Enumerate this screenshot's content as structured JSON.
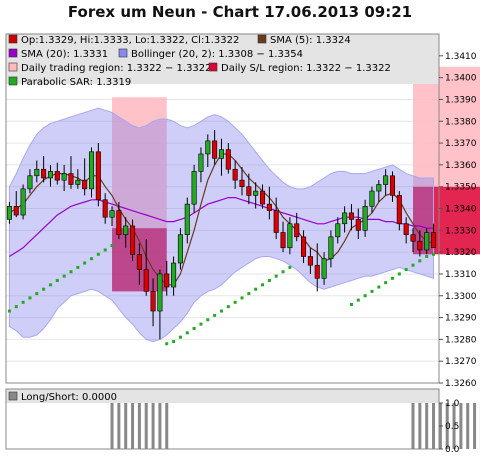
{
  "chart_data": [
    {
      "type": "candlestick",
      "title": "Forex um Neun - Chart 17.06.2013 09:21",
      "ylim": [
        1.326,
        1.342
      ],
      "y_ticks": [
        "1.3260",
        "1.3270",
        "1.3280",
        "1.3290",
        "1.3300",
        "1.3310",
        "1.3320",
        "1.3330",
        "1.3340",
        "1.3350",
        "1.3360",
        "1.3370",
        "1.3380",
        "1.3390",
        "1.3400",
        "1.3410"
      ],
      "legend": [
        {
          "label": "Op:1.3329, Hi:1.3333, Lo:1.3322, Cl:1.3322",
          "color": "#cc0000"
        },
        {
          "label": "SMA (5): 1.3324",
          "color": "#6b3a1e"
        },
        {
          "label": "SMA (20): 1.3331",
          "color": "#9900cc"
        },
        {
          "label": "Bollinger (20, 2): 1.3308 − 1.3354",
          "color": "#8888ee"
        },
        {
          "label": "Daily trading region: 1.3322 − 1.3322",
          "color": "#ffbbbb"
        },
        {
          "label": "Daily S/L region: 1.3322 − 1.3322",
          "color": "#dd0033"
        },
        {
          "label": "Parabolic SAR: 1.3319",
          "color": "#22aa22"
        }
      ],
      "candles": [
        [
          1.3335,
          1.3343,
          1.3333,
          1.3341
        ],
        [
          1.3341,
          1.3348,
          1.3336,
          1.3337
        ],
        [
          1.3337,
          1.3351,
          1.3335,
          1.3349
        ],
        [
          1.3349,
          1.3358,
          1.3347,
          1.3355
        ],
        [
          1.3355,
          1.3362,
          1.3352,
          1.3358
        ],
        [
          1.3358,
          1.3364,
          1.3352,
          1.3354
        ],
        [
          1.3354,
          1.336,
          1.335,
          1.3357
        ],
        [
          1.3357,
          1.3361,
          1.3351,
          1.3353
        ],
        [
          1.3353,
          1.336,
          1.3348,
          1.3356
        ],
        [
          1.3356,
          1.3364,
          1.3349,
          1.3351
        ],
        [
          1.3351,
          1.3358,
          1.3349,
          1.3353
        ],
        [
          1.3353,
          1.3363,
          1.3346,
          1.3349
        ],
        [
          1.3349,
          1.3368,
          1.3345,
          1.3366
        ],
        [
          1.3366,
          1.337,
          1.3341,
          1.3344
        ],
        [
          1.3344,
          1.3347,
          1.3333,
          1.3336
        ],
        [
          1.3336,
          1.3341,
          1.3332,
          1.3339
        ],
        [
          1.3339,
          1.3343,
          1.3326,
          1.3328
        ],
        [
          1.3328,
          1.3336,
          1.3322,
          1.3332
        ],
        [
          1.3332,
          1.3335,
          1.3316,
          1.3319
        ],
        [
          1.3319,
          1.3324,
          1.3305,
          1.3312
        ],
        [
          1.3312,
          1.3326,
          1.33,
          1.3302
        ],
        [
          1.3302,
          1.3308,
          1.3286,
          1.3293
        ],
        [
          1.3293,
          1.3312,
          1.328,
          1.331
        ],
        [
          1.331,
          1.3316,
          1.33,
          1.3304
        ],
        [
          1.3304,
          1.3318,
          1.33,
          1.3315
        ],
        [
          1.3315,
          1.3331,
          1.3312,
          1.3328
        ],
        [
          1.3328,
          1.3345,
          1.3324,
          1.3342
        ],
        [
          1.3342,
          1.336,
          1.3338,
          1.3357
        ],
        [
          1.3357,
          1.3368,
          1.3352,
          1.3365
        ],
        [
          1.3365,
          1.3374,
          1.3359,
          1.3371
        ],
        [
          1.3371,
          1.3376,
          1.336,
          1.3363
        ],
        [
          1.3363,
          1.3372,
          1.3355,
          1.3367
        ],
        [
          1.3367,
          1.337,
          1.3356,
          1.3358
        ],
        [
          1.3358,
          1.3362,
          1.3349,
          1.3353
        ],
        [
          1.3353,
          1.3359,
          1.3346,
          1.335
        ],
        [
          1.335,
          1.3356,
          1.3342,
          1.3346
        ],
        [
          1.3346,
          1.3352,
          1.334,
          1.3348
        ],
        [
          1.3348,
          1.3351,
          1.334,
          1.3342
        ],
        [
          1.3342,
          1.335,
          1.3335,
          1.3339
        ],
        [
          1.3339,
          1.3345,
          1.3326,
          1.3329
        ],
        [
          1.3329,
          1.3334,
          1.332,
          1.3322
        ],
        [
          1.3322,
          1.3336,
          1.3319,
          1.3333
        ],
        [
          1.3333,
          1.3338,
          1.3325,
          1.3327
        ],
        [
          1.3327,
          1.333,
          1.3315,
          1.3318
        ],
        [
          1.3318,
          1.3322,
          1.331,
          1.3314
        ],
        [
          1.3314,
          1.3324,
          1.3302,
          1.3308
        ],
        [
          1.3308,
          1.332,
          1.3305,
          1.3317
        ],
        [
          1.3317,
          1.333,
          1.3313,
          1.3327
        ],
        [
          1.3327,
          1.3336,
          1.3324,
          1.3333
        ],
        [
          1.3333,
          1.3341,
          1.3329,
          1.3338
        ],
        [
          1.3338,
          1.3342,
          1.333,
          1.3335
        ],
        [
          1.3335,
          1.334,
          1.3326,
          1.333
        ],
        [
          1.333,
          1.3344,
          1.3327,
          1.3341
        ],
        [
          1.3341,
          1.335,
          1.3338,
          1.3348
        ],
        [
          1.3348,
          1.3353,
          1.3343,
          1.3351
        ],
        [
          1.3351,
          1.3358,
          1.3346,
          1.3355
        ],
        [
          1.3355,
          1.3357,
          1.3343,
          1.3346
        ],
        [
          1.3346,
          1.3348,
          1.333,
          1.3333
        ],
        [
          1.3333,
          1.3336,
          1.3324,
          1.3328
        ],
        [
          1.3328,
          1.3331,
          1.332,
          1.3325
        ],
        [
          1.3325,
          1.333,
          1.3318,
          1.3321
        ],
        [
          1.3321,
          1.3331,
          1.3319,
          1.3329
        ],
        [
          1.3329,
          1.3333,
          1.3322,
          1.3322
        ]
      ],
      "sma5": [
        1.3338,
        1.334,
        1.3342,
        1.3346,
        1.335,
        1.3353,
        1.3355,
        1.3356,
        1.3356,
        1.3355,
        1.3354,
        1.3352,
        1.3355,
        1.3355,
        1.335,
        1.3346,
        1.334,
        1.3335,
        1.3331,
        1.3325,
        1.3318,
        1.3312,
        1.3308,
        1.3305,
        1.3305,
        1.331,
        1.332,
        1.333,
        1.3342,
        1.3353,
        1.336,
        1.3365,
        1.3365,
        1.3362,
        1.3358,
        1.3354,
        1.3351,
        1.3348,
        1.3345,
        1.3341,
        1.3336,
        1.3333,
        1.333,
        1.3326,
        1.3322,
        1.332,
        1.3316,
        1.3317,
        1.332,
        1.3325,
        1.3331,
        1.3333,
        1.3335,
        1.3338,
        1.3343,
        1.3346,
        1.3347,
        1.3344,
        1.3338,
        1.3333,
        1.3328,
        1.3325,
        1.3324
      ],
      "sma20": [
        1.3318,
        1.332,
        1.3322,
        1.3325,
        1.3328,
        1.3331,
        1.3334,
        1.3337,
        1.3339,
        1.3341,
        1.3342,
        1.3343,
        1.3344,
        1.3344,
        1.3343,
        1.3342,
        1.3341,
        1.334,
        1.3339,
        1.3338,
        1.3337,
        1.3336,
        1.3335,
        1.3334,
        1.3334,
        1.3335,
        1.3336,
        1.3338,
        1.334,
        1.3342,
        1.3343,
        1.3344,
        1.3345,
        1.3345,
        1.3344,
        1.3343,
        1.3342,
        1.3341,
        1.334,
        1.3339,
        1.3338,
        1.3337,
        1.3336,
        1.3335,
        1.3334,
        1.3333,
        1.3333,
        1.3334,
        1.3335,
        1.3336,
        1.3336,
        1.3336,
        1.3335,
        1.3335,
        1.3335,
        1.3334,
        1.3334,
        1.3333,
        1.3333,
        1.3332,
        1.3332,
        1.3331,
        1.3331
      ],
      "boll_upper": [
        1.335,
        1.3356,
        1.3363,
        1.3369,
        1.3374,
        1.3377,
        1.3379,
        1.338,
        1.3381,
        1.3382,
        1.3383,
        1.3384,
        1.3385,
        1.3386,
        1.3385,
        1.3384,
        1.3382,
        1.338,
        1.3378,
        1.3377,
        1.3378,
        1.338,
        1.3381,
        1.3381,
        1.338,
        1.3378,
        1.3377,
        1.3378,
        1.338,
        1.3382,
        1.3383,
        1.3382,
        1.338,
        1.3377,
        1.3374,
        1.337,
        1.3366,
        1.3362,
        1.3358,
        1.3355,
        1.3352,
        1.335,
        1.3349,
        1.3349,
        1.335,
        1.3352,
        1.3354,
        1.3356,
        1.3357,
        1.3357,
        1.3356,
        1.3356,
        1.3356,
        1.3357,
        1.3358,
        1.3359,
        1.336,
        1.3358,
        1.3356,
        1.3355,
        1.3354,
        1.3354,
        1.3354
      ],
      "boll_lower": [
        1.3286,
        1.3284,
        1.3281,
        1.3281,
        1.3282,
        1.3285,
        1.3289,
        1.3294,
        1.3297,
        1.33,
        1.3301,
        1.3302,
        1.3303,
        1.3302,
        1.33,
        1.3298,
        1.3294,
        1.329,
        1.3287,
        1.3283,
        1.328,
        1.3279,
        1.328,
        1.3282,
        1.3285,
        1.3288,
        1.3292,
        1.3297,
        1.33,
        1.3302,
        1.3303,
        1.3305,
        1.3308,
        1.3311,
        1.3313,
        1.3315,
        1.3317,
        1.3318,
        1.3318,
        1.3317,
        1.3316,
        1.3314,
        1.3312,
        1.3309,
        1.3306,
        1.3304,
        1.3303,
        1.3304,
        1.3305,
        1.3306,
        1.3307,
        1.3308,
        1.3309,
        1.3309,
        1.331,
        1.3311,
        1.3312,
        1.3313,
        1.3312,
        1.3311,
        1.331,
        1.3309,
        1.3308
      ],
      "sar": [
        1.3293,
        1.3295,
        1.3297,
        1.3299,
        1.3301,
        1.3303,
        1.3305,
        1.3307,
        1.3309,
        1.3311,
        1.3313,
        1.3315,
        1.3317,
        1.3319,
        1.3321,
        1.3323,
        null,
        null,
        null,
        null,
        null,
        null,
        null,
        1.3278,
        1.3279,
        1.3281,
        1.3283,
        1.3285,
        1.3287,
        1.3289,
        1.3291,
        1.3293,
        1.3295,
        1.3297,
        1.3299,
        1.3301,
        1.3303,
        1.3305,
        1.3307,
        1.3309,
        1.3311,
        1.3313,
        null,
        null,
        null,
        null,
        null,
        null,
        null,
        null,
        1.3296,
        1.3298,
        1.33,
        1.3302,
        1.3304,
        1.3306,
        1.3308,
        1.331,
        1.3312,
        1.3314,
        1.3316,
        1.3318,
        1.3319
      ],
      "regions": [
        {
          "kind": "trading",
          "start": 15,
          "end": 23,
          "low": 1.3331,
          "high": 1.3391
        },
        {
          "kind": "trading",
          "start": 59,
          "end": 71,
          "low": 1.335,
          "high": 1.3405
        },
        {
          "kind": "sl",
          "start": 15,
          "end": 23,
          "low": 1.3302,
          "high": 1.3331
        },
        {
          "kind": "sl",
          "start": 59,
          "end": 71,
          "low": 1.3319,
          "high": 1.335
        }
      ]
    },
    {
      "type": "bar",
      "legend": [
        {
          "label": "Long/Short: 0.0000",
          "color": "#888888"
        }
      ],
      "ylim": [
        0,
        1
      ],
      "y_ticks": [
        "0.0",
        "0.5",
        "1.0"
      ]
    }
  ]
}
